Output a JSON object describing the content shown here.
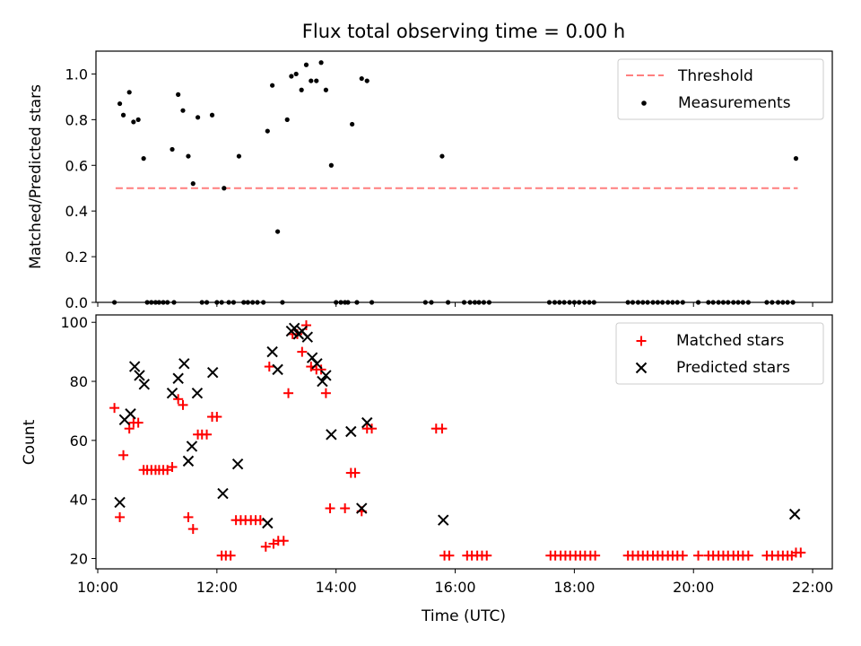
{
  "title": "Flux total observing time = 0.00 h",
  "colors": {
    "threshold": "#ff7f7f",
    "measurement": "#000000",
    "matched": "#ff0000",
    "predicted": "#000000"
  },
  "chart_data": [
    {
      "type": "scatter",
      "panel": "top",
      "ylabel": "Matched/Predicted stars",
      "ylim": [
        0,
        1.1
      ],
      "yticks": [
        "0.0",
        "0.2",
        "0.4",
        "0.6",
        "0.8",
        "1.0"
      ],
      "ytick_values": [
        0,
        0.2,
        0.4,
        0.6,
        0.8,
        1.0
      ],
      "xlim": [
        9.97,
        22.33
      ],
      "xticks": [
        10,
        12,
        14,
        16,
        18,
        20,
        22
      ],
      "legend": {
        "position": "top-right",
        "entries": [
          "Threshold",
          "Measurements"
        ]
      },
      "threshold": {
        "name": "Threshold",
        "value": 0.5,
        "x": [
          10.3,
          21.75
        ]
      },
      "series": [
        {
          "name": "Measurements",
          "x": [
            10.28,
            10.37,
            10.43,
            10.53,
            10.6,
            10.68,
            10.77,
            10.83,
            10.9,
            10.97,
            11.03,
            11.1,
            11.17,
            11.25,
            11.28,
            11.35,
            11.43,
            11.52,
            11.6,
            11.68,
            11.75,
            11.83,
            11.92,
            12.0,
            12.08,
            12.12,
            12.2,
            12.28,
            12.37,
            12.45,
            12.52,
            12.6,
            12.68,
            12.78,
            12.85,
            12.93,
            13.02,
            13.1,
            13.18,
            13.25,
            13.33,
            13.42,
            13.5,
            13.58,
            13.67,
            13.75,
            13.83,
            13.92,
            14.0,
            14.08,
            14.15,
            14.2,
            14.27,
            14.35,
            14.43,
            14.52,
            14.6,
            15.5,
            15.6,
            15.78,
            15.88,
            16.15,
            16.25,
            16.33,
            16.4,
            16.48,
            16.57,
            17.58,
            17.67,
            17.75,
            17.83,
            17.92,
            18.0,
            18.08,
            18.17,
            18.25,
            18.33,
            18.9,
            18.98,
            19.07,
            19.15,
            19.23,
            19.32,
            19.4,
            19.48,
            19.57,
            19.65,
            19.73,
            19.82,
            20.08,
            20.25,
            20.33,
            20.42,
            20.5,
            20.58,
            20.67,
            20.75,
            20.83,
            20.92,
            21.23,
            21.32,
            21.42,
            21.5,
            21.58,
            21.67,
            21.72
          ],
          "y": [
            0.0,
            0.87,
            0.82,
            0.92,
            0.79,
            0.8,
            0.63,
            0.0,
            0.0,
            0.0,
            0.0,
            0.0,
            0.0,
            0.67,
            0.0,
            0.91,
            0.84,
            0.64,
            0.52,
            0.81,
            0.0,
            0.0,
            0.82,
            0.0,
            0.0,
            0.5,
            0.0,
            0.0,
            0.64,
            0.0,
            0.0,
            0.0,
            0.0,
            0.0,
            0.75,
            0.95,
            0.31,
            0.0,
            0.8,
            0.99,
            1.0,
            0.93,
            1.04,
            0.97,
            0.97,
            1.05,
            0.93,
            0.6,
            0.0,
            0.0,
            0.0,
            0.0,
            0.78,
            0.0,
            0.98,
            0.97,
            0.0,
            0.0,
            0.0,
            0.64,
            0.0,
            0.0,
            0.0,
            0.0,
            0.0,
            0.0,
            0.0,
            0.0,
            0.0,
            0.0,
            0.0,
            0.0,
            0.0,
            0.0,
            0.0,
            0.0,
            0.0,
            0.0,
            0.0,
            0.0,
            0.0,
            0.0,
            0.0,
            0.0,
            0.0,
            0.0,
            0.0,
            0.0,
            0.0,
            0.0,
            0.0,
            0.0,
            0.0,
            0.0,
            0.0,
            0.0,
            0.0,
            0.0,
            0.0,
            0.0,
            0.0,
            0.0,
            0.0,
            0.0,
            0.0,
            0.63
          ]
        }
      ]
    },
    {
      "type": "scatter",
      "panel": "bottom",
      "xlabel": "Time (UTC)",
      "ylabel": "Count",
      "ylim": [
        16.5,
        102.5
      ],
      "yticks": [
        "20",
        "40",
        "60",
        "80",
        "100"
      ],
      "ytick_values": [
        20,
        40,
        60,
        80,
        100
      ],
      "xlim": [
        9.97,
        22.33
      ],
      "xticks": [
        "10:00",
        "12:00",
        "14:00",
        "16:00",
        "18:00",
        "20:00",
        "22:00"
      ],
      "xtick_values": [
        10,
        12,
        14,
        16,
        18,
        20,
        22
      ],
      "legend": {
        "position": "top-right",
        "entries": [
          "Matched stars",
          "Predicted stars"
        ]
      },
      "series": [
        {
          "name": "Matched stars",
          "marker": "plus",
          "x": [
            10.28,
            10.37,
            10.43,
            10.53,
            10.6,
            10.68,
            10.77,
            10.83,
            10.9,
            10.97,
            11.03,
            11.1,
            11.17,
            11.25,
            11.35,
            11.43,
            11.52,
            11.6,
            11.68,
            11.75,
            11.83,
            11.92,
            12.0,
            12.08,
            12.15,
            12.23,
            12.32,
            12.4,
            12.48,
            12.57,
            12.65,
            12.73,
            12.82,
            12.88,
            12.95,
            13.03,
            13.12,
            13.2,
            13.27,
            13.35,
            13.43,
            13.5,
            13.58,
            13.67,
            13.75,
            13.83,
            13.9,
            14.15,
            14.25,
            14.32,
            14.43,
            14.52,
            14.6,
            15.68,
            15.78,
            15.82,
            15.9,
            16.2,
            16.28,
            16.37,
            16.45,
            16.53,
            17.6,
            17.68,
            17.77,
            17.85,
            17.93,
            18.02,
            18.1,
            18.18,
            18.27,
            18.35,
            18.9,
            18.98,
            19.07,
            19.15,
            19.23,
            19.32,
            19.4,
            19.48,
            19.57,
            19.65,
            19.73,
            19.82,
            20.08,
            20.25,
            20.33,
            20.42,
            20.5,
            20.58,
            20.67,
            20.75,
            20.83,
            20.92,
            21.23,
            21.32,
            21.42,
            21.5,
            21.58,
            21.65,
            21.72,
            21.8
          ],
          "y": [
            71,
            34,
            55,
            64,
            66,
            66,
            50,
            50,
            50,
            50,
            50,
            50,
            50,
            51,
            74,
            72,
            34,
            30,
            62,
            62,
            62,
            68,
            68,
            21,
            21,
            21,
            33,
            33,
            33,
            33,
            33,
            33,
            24,
            85,
            25,
            26,
            26,
            76,
            96,
            96,
            90,
            99,
            85,
            84,
            84,
            76,
            37,
            37,
            49,
            49,
            36,
            64,
            64,
            64,
            64,
            21,
            21,
            21,
            21,
            21,
            21,
            21,
            21,
            21,
            21,
            21,
            21,
            21,
            21,
            21,
            21,
            21,
            21,
            21,
            21,
            21,
            21,
            21,
            21,
            21,
            21,
            21,
            21,
            21,
            21,
            21,
            21,
            21,
            21,
            21,
            21,
            21,
            21,
            21,
            21,
            21,
            21,
            21,
            21,
            21,
            22,
            22
          ]
        },
        {
          "name": "Predicted stars",
          "marker": "x",
          "x": [
            10.37,
            10.45,
            10.55,
            10.62,
            10.7,
            10.78,
            11.25,
            11.35,
            11.45,
            11.52,
            11.58,
            11.67,
            11.93,
            12.1,
            12.35,
            12.85,
            12.93,
            13.02,
            13.25,
            13.3,
            13.37,
            13.43,
            13.52,
            13.6,
            13.68,
            13.77,
            13.83,
            13.92,
            14.25,
            14.43,
            14.52,
            15.8,
            21.7
          ],
          "y": [
            39,
            67,
            69,
            85,
            82,
            79,
            76,
            81,
            86,
            53,
            58,
            76,
            83,
            42,
            52,
            32,
            90,
            84,
            97,
            98,
            96,
            97,
            95,
            88,
            86,
            80,
            82,
            62,
            63,
            37,
            66,
            33,
            35
          ]
        }
      ]
    }
  ]
}
